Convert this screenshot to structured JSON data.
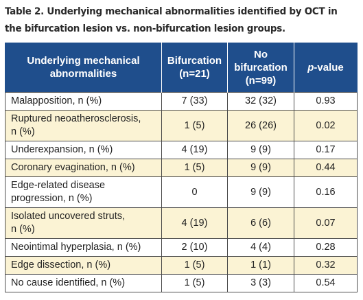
{
  "caption": {
    "line1": "Table 2. Underlying mechanical abnormalities identified by OCT in",
    "line2": "the bifurcation lesion vs. non-bifurcation lesion groups."
  },
  "header": {
    "col1": [
      "Underlying mechanical",
      "abnormalities"
    ],
    "col2": [
      "Bifurcation",
      "(n=21)"
    ],
    "col3": [
      "No",
      "bifurcation",
      "(n=99)"
    ],
    "col4_italic": "p",
    "col4_rest": "-value"
  },
  "rows": [
    {
      "label": [
        "Malapposition, n (%)"
      ],
      "bifurcation": "7 (33)",
      "no_bifurcation": "32 (32)",
      "p_value": "0.93"
    },
    {
      "label": [
        "Ruptured neoatherosclerosis,",
        "n (%)"
      ],
      "bifurcation": "1 (5)",
      "no_bifurcation": "26 (26)",
      "p_value": "0.02"
    },
    {
      "label": [
        "Underexpansion, n (%)"
      ],
      "bifurcation": "4 (19)",
      "no_bifurcation": "9 (9)",
      "p_value": "0.17"
    },
    {
      "label": [
        "Coronary evagination, n (%)"
      ],
      "bifurcation": "1 (5)",
      "no_bifurcation": "9 (9)",
      "p_value": "0.44"
    },
    {
      "label": [
        "Edge-related disease",
        "progression, n (%)"
      ],
      "bifurcation": "0",
      "no_bifurcation": "9 (9)",
      "p_value": "0.16"
    },
    {
      "label": [
        "Isolated uncovered struts,",
        "n (%)"
      ],
      "bifurcation": "4 (19)",
      "no_bifurcation": "6 (6)",
      "p_value": "0.07"
    },
    {
      "label": [
        "Neointimal hyperplasia, n (%)"
      ],
      "bifurcation": "2 (10)",
      "no_bifurcation": "4 (4)",
      "p_value": "0.28"
    },
    {
      "label": [
        "Edge dissection, n (%)"
      ],
      "bifurcation": "1 (5)",
      "no_bifurcation": "1 (1)",
      "p_value": "0.32"
    },
    {
      "label": [
        "No cause identified, n (%)"
      ],
      "bifurcation": "1 (5)",
      "no_bifurcation": "3 (3)",
      "p_value": "0.54"
    }
  ],
  "colors": {
    "header_bg": "#1f4e8c",
    "stripe": "#fbf3d4"
  }
}
